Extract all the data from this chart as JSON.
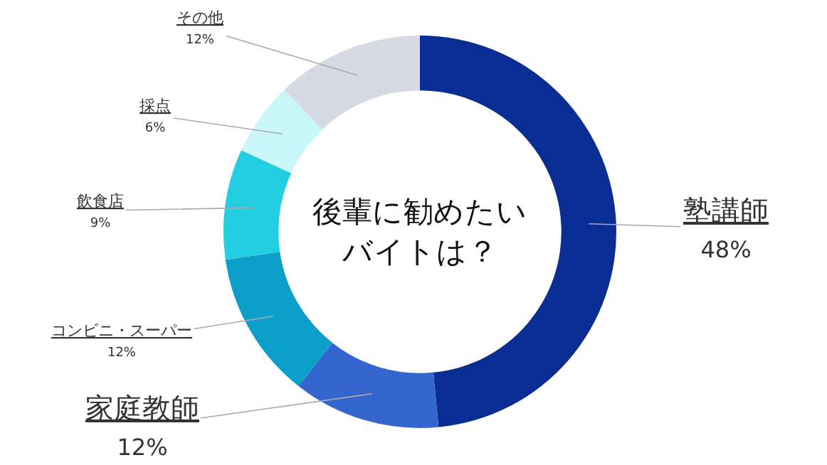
{
  "chart_data": {
    "type": "donut",
    "title": "後輩に勧めたいバイトは？",
    "categories": [
      "塾講師",
      "家庭教師",
      "コンビニ・スーパー",
      "飲食店",
      "採点",
      "その他"
    ],
    "values": [
      48,
      12,
      12,
      9,
      6,
      12
    ],
    "value_labels": [
      "48%",
      "12%",
      "12%",
      "9%",
      "6%",
      "12%"
    ],
    "colors": [
      "#0a2d94",
      "#3465cf",
      "#0b9fc9",
      "#22cfe1",
      "#c9f6f8",
      "#d5dae4"
    ],
    "legend": false
  }
}
